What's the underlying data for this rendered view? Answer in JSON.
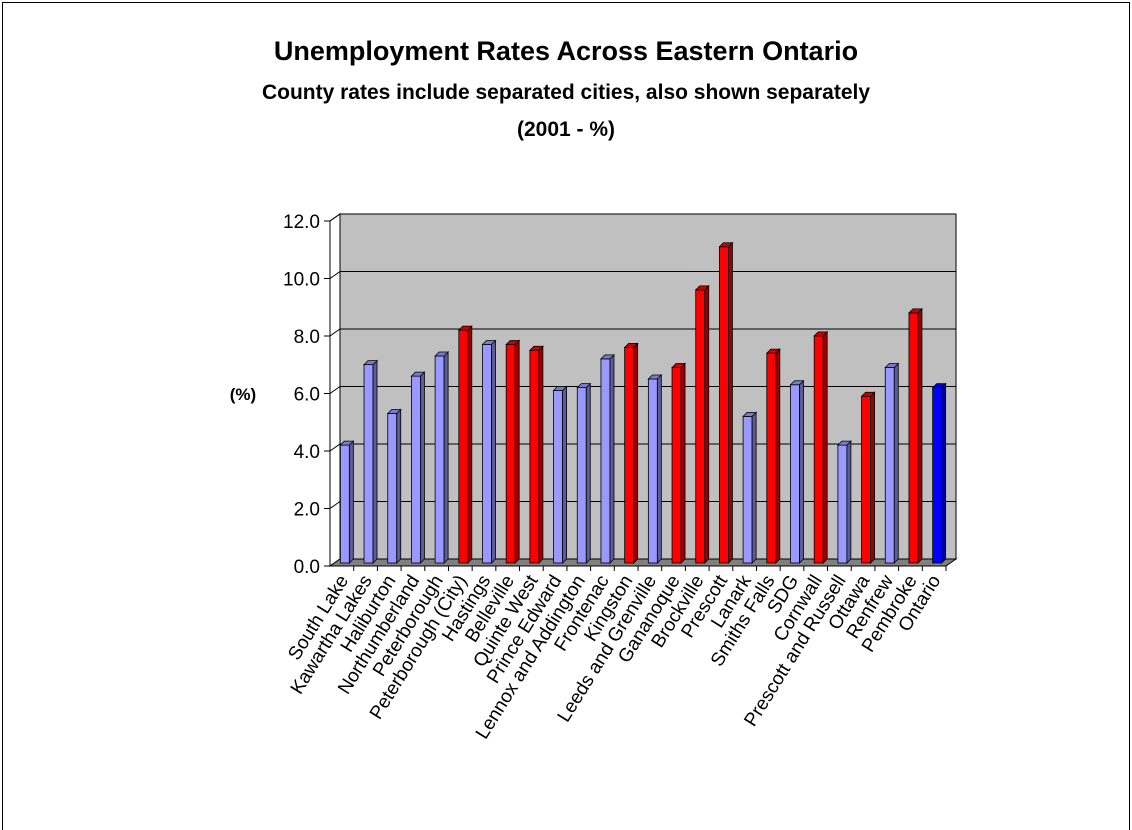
{
  "chart_data": {
    "type": "bar",
    "title": "Unemployment Rates Across Eastern Ontario",
    "subtitle": "County rates include separated cities, also shown separately",
    "subtitle2": "(2001 - %)",
    "ylabel": "(%)",
    "ylim": [
      0,
      12
    ],
    "yticks": [
      "0.0",
      "2.0",
      "4.0",
      "6.0",
      "8.0",
      "10.0",
      "12.0"
    ],
    "grid": true,
    "categories": [
      "South Lake",
      "Kawartha Lakes",
      "Haliburton",
      "Northumberland",
      "Peterborough",
      "Peterborough (City)",
      "Hastings",
      "Belleville",
      "Quinte West",
      "Prince Edward",
      "Lennox and Addington",
      "Frontenac",
      "Kingston",
      "Leeds and Grenville",
      "Gananoque",
      "Brockville",
      "Prescott",
      "Lanark",
      "Smiths Falls",
      "SDG",
      "Cornwall",
      "Prescott and Russell",
      "Ottawa",
      "Renfrew",
      "Pembroke",
      "Ontario"
    ],
    "values": [
      4.1,
      6.9,
      5.2,
      6.5,
      7.2,
      8.1,
      7.6,
      7.6,
      7.4,
      6.0,
      6.1,
      7.1,
      7.5,
      6.4,
      6.8,
      9.5,
      11.0,
      5.1,
      7.3,
      6.2,
      7.9,
      4.1,
      5.8,
      6.8,
      8.7,
      6.1
    ],
    "bar_kinds": [
      "county",
      "county",
      "county",
      "county",
      "county",
      "city",
      "county",
      "city",
      "city",
      "county",
      "county",
      "county",
      "city",
      "county",
      "city",
      "city",
      "city",
      "county",
      "city",
      "county",
      "city",
      "county",
      "city",
      "county",
      "city",
      "province"
    ],
    "colors": {
      "county": "#9999ff",
      "city": "#ff0000",
      "province": "#0000ff",
      "plot_background": "#c0c0c0",
      "gridline": "#000000"
    }
  }
}
